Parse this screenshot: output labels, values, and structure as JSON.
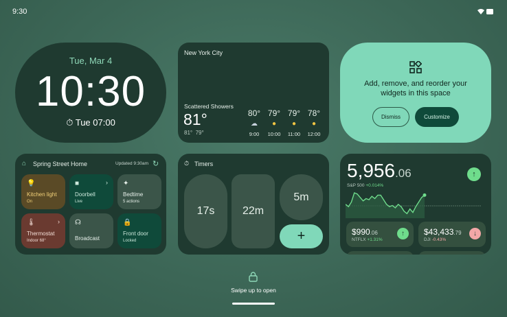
{
  "status": {
    "time": "9:30",
    "wifi_icon": "wifi-icon",
    "battery_icon": "battery-icon"
  },
  "clock": {
    "date": "Tue, Mar 4",
    "time": "10:30",
    "alarm": "Tue 07:00"
  },
  "weather": {
    "city": "New York City",
    "condition": "Scattered Showers",
    "current": "81°",
    "high": "81°",
    "low": "79°",
    "hourly": [
      {
        "temp": "80°",
        "time": "9:00",
        "icon": "rain-cloud"
      },
      {
        "temp": "79°",
        "time": "10:00",
        "icon": "partly-sunny"
      },
      {
        "temp": "79°",
        "time": "11:00",
        "icon": "partly-sunny"
      },
      {
        "temp": "78°",
        "time": "12:00",
        "icon": "partly-sunny"
      }
    ]
  },
  "promo": {
    "text": "Add, remove, and reorder your widgets in this space",
    "dismiss": "Dismiss",
    "customize": "Customize"
  },
  "home": {
    "title": "Spring Street Home",
    "updated": "Updated 9:30am",
    "tiles": [
      {
        "label": "Kitchen light",
        "status": "On"
      },
      {
        "label": "Doorbell",
        "status": "Live"
      },
      {
        "label": "Bedtime",
        "status": "5 actions"
      },
      {
        "label": "Thermostat",
        "status": "Indoor 68°"
      },
      {
        "label": "Broadcast",
        "status": ""
      },
      {
        "label": "Front door",
        "status": "Locked"
      }
    ]
  },
  "timers": {
    "title": "Timers",
    "items": [
      "17s",
      "22m",
      "5m"
    ],
    "add": "+"
  },
  "stocks": {
    "main_int": "5,956",
    "main_dec": ".06",
    "main_name": "S&P 500",
    "main_change": "+0.014%",
    "main_trend": "up",
    "sparkline": [
      52,
      50,
      54,
      62,
      61,
      58,
      55,
      57,
      56,
      59,
      57,
      60,
      60,
      56,
      52,
      50,
      51,
      49,
      52,
      50,
      46,
      44,
      48,
      45,
      50,
      54,
      58,
      60
    ],
    "items": [
      {
        "int": "$990",
        "dec": ".06",
        "name": "NTFLX",
        "change": "+1.31%",
        "trend": "up"
      },
      {
        "int": "$43,433",
        "dec": ".79",
        "name": "DJI",
        "change": "-0.43%",
        "trend": "down"
      }
    ],
    "colors": {
      "up": "#6fdc8c",
      "down": "#f2a7a7"
    }
  },
  "lock": {
    "text": "Swipe up to open"
  }
}
